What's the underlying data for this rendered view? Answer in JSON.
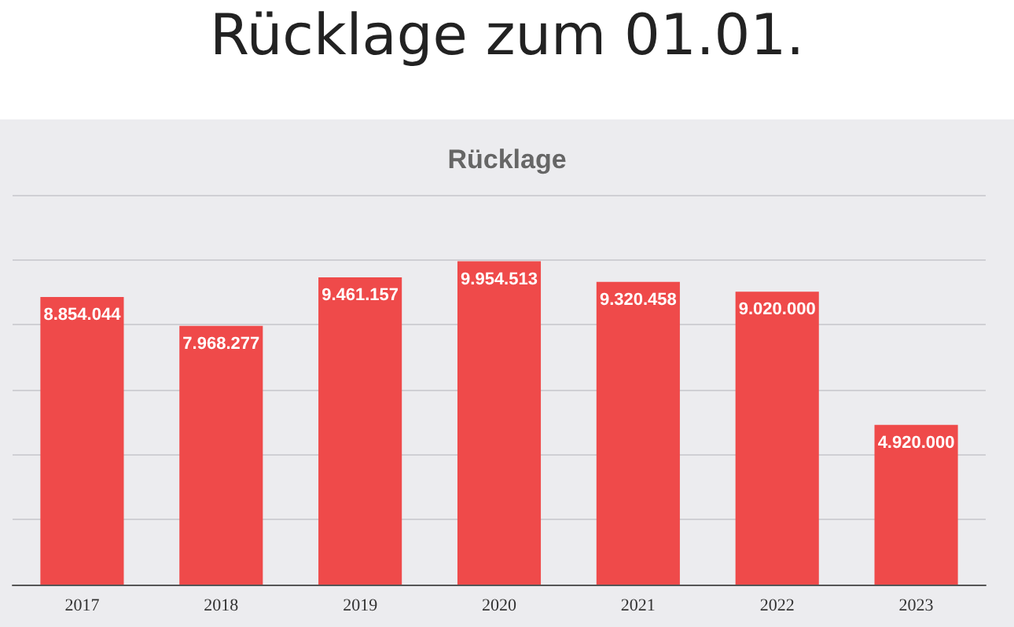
{
  "chart_data": {
    "type": "bar",
    "title": "Rücklage zum 01.01.",
    "subtitle": "Rücklage",
    "categories": [
      "2017",
      "2018",
      "2019",
      "2020",
      "2021",
      "2022",
      "2023"
    ],
    "values": [
      8854044,
      7968277,
      9461157,
      9954513,
      9320458,
      9020000,
      4920000
    ],
    "value_labels": [
      "8.854.044",
      "7.968.277",
      "9.461.157",
      "9.954.513",
      "9.320.458",
      "9.020.000",
      "4.920.000"
    ],
    "color": "#ef4a4a",
    "ylim": [
      0,
      12000000
    ],
    "yticks": [
      {
        "value": 0,
        "label": null
      },
      {
        "value": 2000000,
        "label": null
      },
      {
        "value": 4000000,
        "label": null
      },
      {
        "value": 6000000,
        "label": null
      },
      {
        "value": 8000000,
        "label": null
      },
      {
        "value": 10000000,
        "label": null
      },
      {
        "value": 12000000,
        "label": null
      }
    ],
    "grid": "y",
    "tick_labels": "x"
  }
}
